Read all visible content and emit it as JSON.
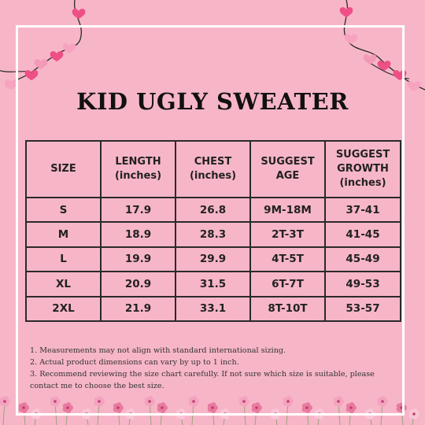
{
  "title": "KID UGLY SWEATER",
  "table": {
    "headers": [
      [
        "SIZE"
      ],
      [
        "LENGTH",
        "(inches)"
      ],
      [
        "CHEST",
        "(inches)"
      ],
      [
        "SUGGEST",
        "AGE"
      ],
      [
        "SUGGEST",
        "GROWTH",
        "(inches)"
      ]
    ],
    "rows": [
      [
        "S",
        "17.9",
        "26.8",
        "9M-18M",
        "37-41"
      ],
      [
        "M",
        "18.9",
        "28.3",
        "2T-3T",
        "41-45"
      ],
      [
        "L",
        "19.9",
        "29.9",
        "4T-5T",
        "45-49"
      ],
      [
        "XL",
        "20.9",
        "31.5",
        "6T-7T",
        "49-53"
      ],
      [
        "2XL",
        "21.9",
        "33.1",
        "8T-10T",
        "53-57"
      ]
    ]
  },
  "notes": [
    "1. Measurements may not align with standard international sizing.",
    "2. Actual product dimensions can vary by up to 1 inch.",
    "3. Recommend reviewing the size chart carefully. If not sure which size is suitable, please",
    "contact me to choose the best size."
  ],
  "colors": {
    "background": "#f7b6c8",
    "frame": "#ffffff",
    "text": "#111111",
    "heart": "#ee4f86",
    "flower": "#e87aa0"
  }
}
